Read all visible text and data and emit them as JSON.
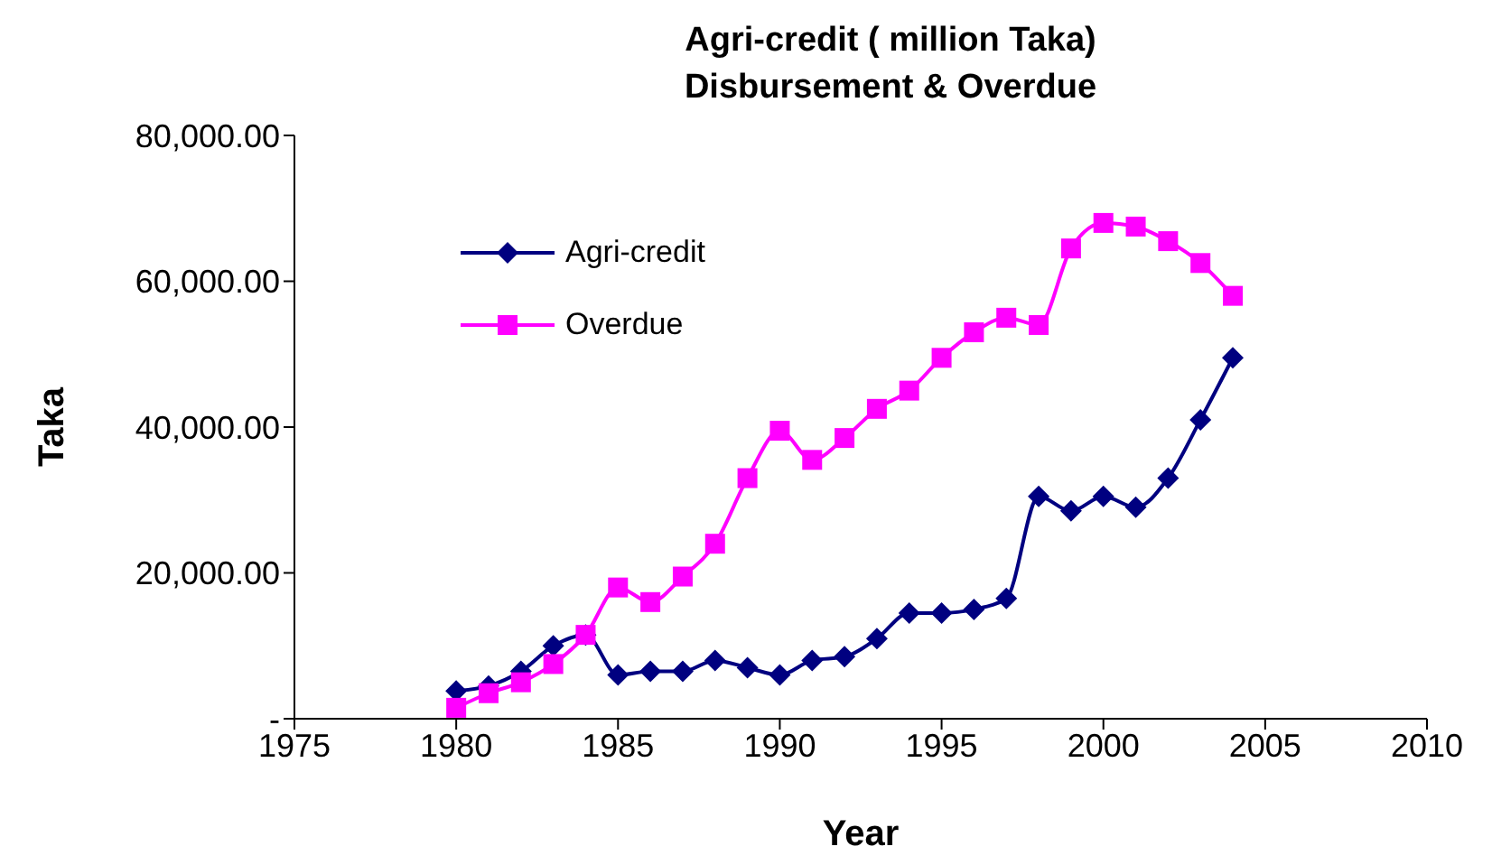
{
  "chart_data": {
    "type": "line",
    "title": "Agri-credit ( million Taka)\nDisbursement & Overdue",
    "xlabel": "Year",
    "ylabel": "Taka",
    "x": [
      1980,
      1981,
      1982,
      1983,
      1984,
      1985,
      1986,
      1987,
      1988,
      1989,
      1990,
      1991,
      1992,
      1993,
      1994,
      1995,
      1996,
      1997,
      1998,
      1999,
      2000,
      2001,
      2002,
      2003,
      2004
    ],
    "series": [
      {
        "name": "Agri-credit",
        "color": "#000080",
        "marker": "diamond",
        "values": [
          3800,
          4500,
          6500,
          10000,
          11500,
          6000,
          6500,
          6500,
          8000,
          7000,
          6000,
          8000,
          8500,
          11000,
          14500,
          14500,
          15000,
          16500,
          30500,
          28500,
          30500,
          29000,
          33000,
          41000,
          49500
        ]
      },
      {
        "name": "Overdue",
        "color": "#ff00ff",
        "marker": "square",
        "values": [
          1500,
          3500,
          5000,
          7500,
          11500,
          18000,
          16000,
          19500,
          24000,
          33000,
          39500,
          35500,
          38500,
          42500,
          45000,
          49500,
          53000,
          55000,
          54000,
          64500,
          68000,
          67500,
          65500,
          62500,
          58000
        ]
      }
    ],
    "xlim": [
      1975,
      2010
    ],
    "xticks": [
      1975,
      1980,
      1985,
      1990,
      1995,
      2000,
      2005,
      2010
    ],
    "ylim": [
      0,
      80000
    ],
    "yticks": [
      {
        "value": 0,
        "label": "-"
      },
      {
        "value": 20000,
        "label": "20,000.00"
      },
      {
        "value": 40000,
        "label": "40,000.00"
      },
      {
        "value": 60000,
        "label": "60,000.00"
      },
      {
        "value": 80000,
        "label": "80,000.00"
      }
    ],
    "grid": false,
    "legend": "top left"
  }
}
